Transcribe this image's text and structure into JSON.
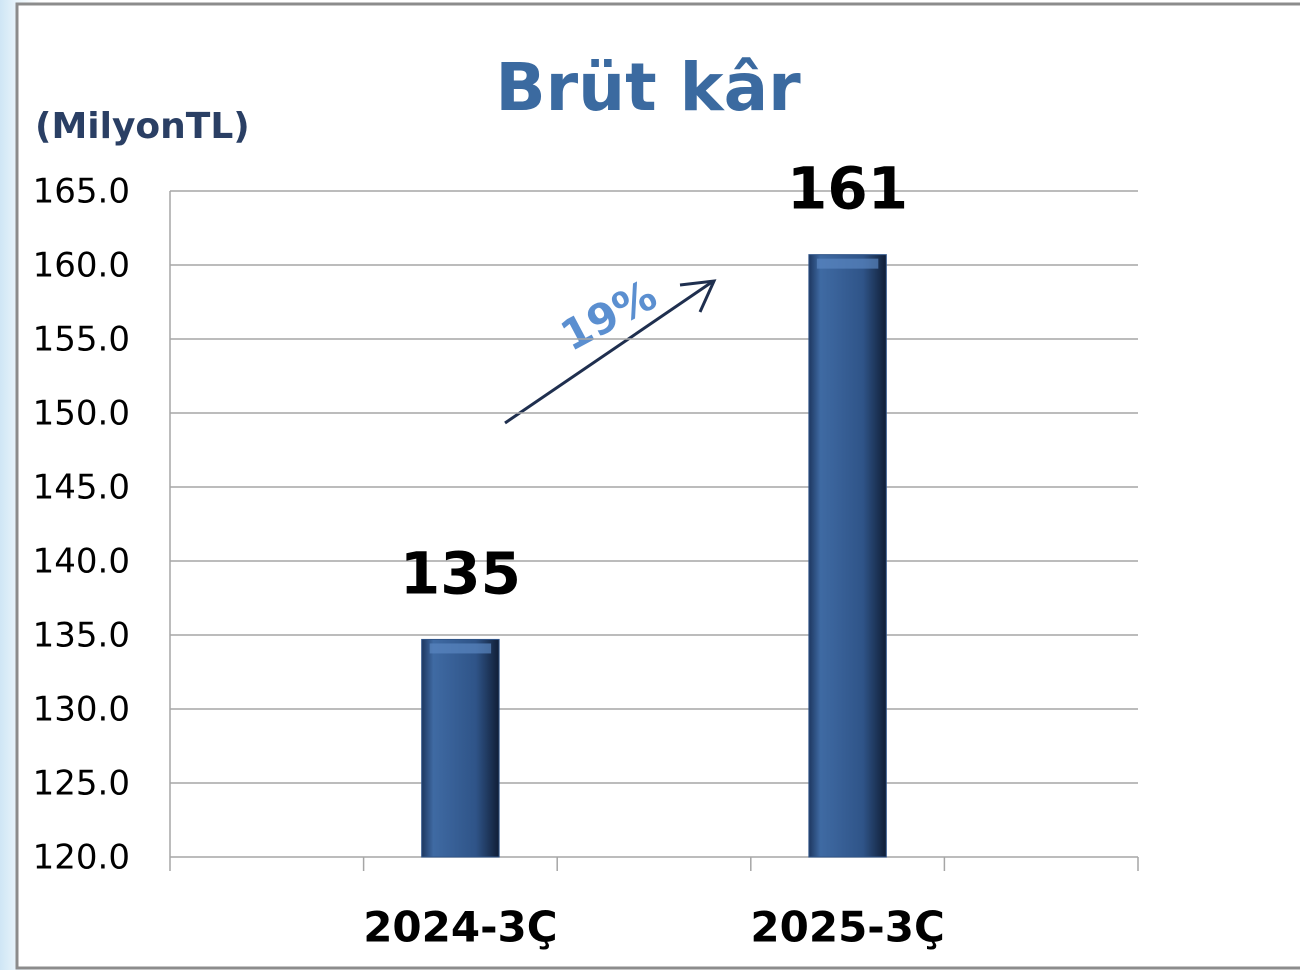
{
  "chart_data": {
    "type": "bar",
    "title": "Brüt kâr",
    "unit_label": "(MilyonTL)",
    "categories": [
      null,
      "2024-3Ç",
      null,
      "2025-3Ç",
      null
    ],
    "values": [
      null,
      134.7,
      null,
      160.7,
      null
    ],
    "value_labels": [
      null,
      "135",
      null,
      "161",
      null
    ],
    "color": "#2f5488",
    "ylim": [
      120,
      165
    ],
    "yticks": [
      {
        "value": 120,
        "label": "120.0"
      },
      {
        "value": 125,
        "label": "125.0"
      },
      {
        "value": 130,
        "label": "130.0"
      },
      {
        "value": 135,
        "label": "135.0"
      },
      {
        "value": 140,
        "label": "140.0"
      },
      {
        "value": 145,
        "label": "145.0"
      },
      {
        "value": 150,
        "label": "150.0"
      },
      {
        "value": 155,
        "label": "155.0"
      },
      {
        "value": 160,
        "label": "160.0"
      },
      {
        "value": 165,
        "label": "165.0"
      }
    ],
    "grid": true,
    "annotations": [
      {
        "text": "19%"
      }
    ]
  }
}
